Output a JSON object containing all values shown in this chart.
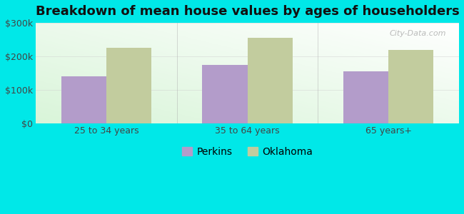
{
  "title": "Breakdown of mean house values by ages of householders",
  "categories": [
    "25 to 34 years",
    "35 to 64 years",
    "65 years+"
  ],
  "perkins_values": [
    140000,
    175000,
    155000
  ],
  "oklahoma_values": [
    225000,
    255000,
    220000
  ],
  "perkins_color": "#b39cca",
  "oklahoma_color": "#c2cc9e",
  "background_outer": "#00e8e8",
  "ylim": [
    0,
    300000
  ],
  "yticks": [
    0,
    100000,
    200000,
    300000
  ],
  "ytick_labels": [
    "$0",
    "$100k",
    "$200k",
    "$300k"
  ],
  "legend_labels": [
    "Perkins",
    "Oklahoma"
  ],
  "title_fontsize": 13,
  "bar_width": 0.32,
  "watermark": "City-Data.com"
}
